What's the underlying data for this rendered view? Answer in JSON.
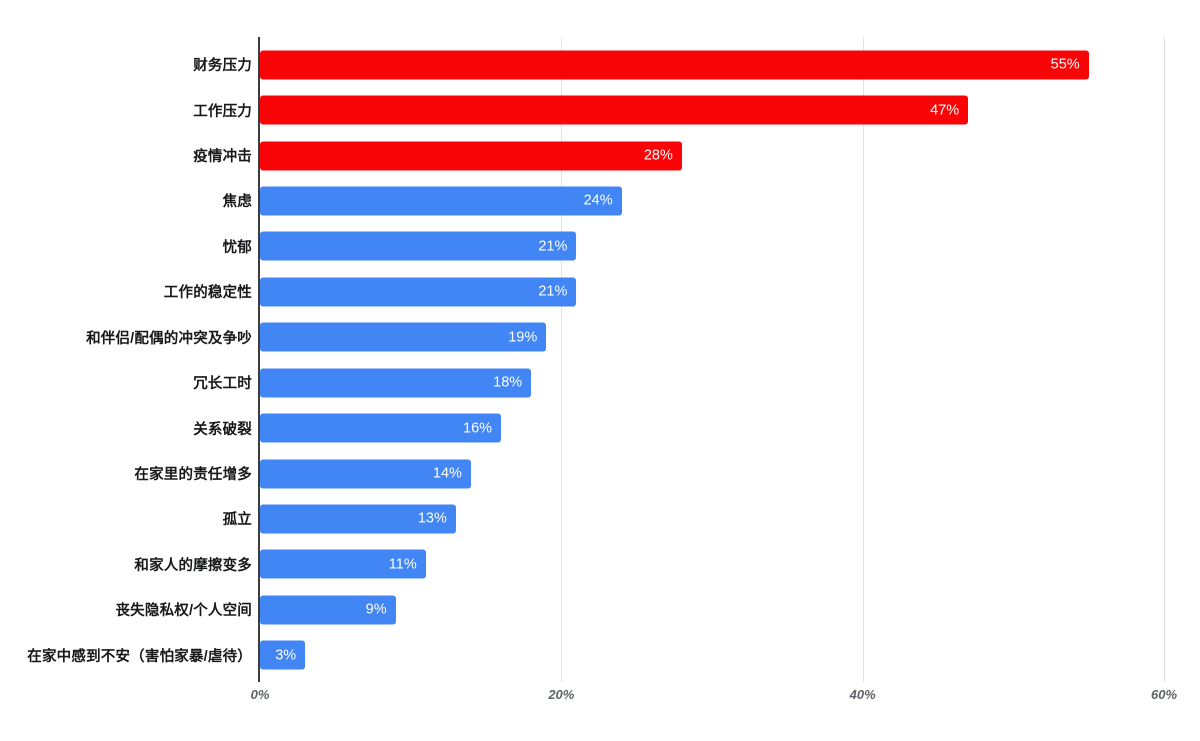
{
  "chart_data": {
    "type": "bar",
    "orientation": "horizontal",
    "title": "",
    "xlabel": "",
    "ylabel": "",
    "categories": [
      "财务压力",
      "工作压力",
      "疫情冲击",
      "焦虑",
      "忧郁",
      "工作的稳定性",
      "和伴侣/配偶的冲突及争吵",
      "冗长工时",
      "关系破裂",
      "在家里的责任增多",
      "孤立",
      "和家人的摩擦变多",
      "丧失隐私权/个人空间",
      "在家中感到不安（害怕家暴/虐待）"
    ],
    "values": [
      55,
      47,
      28,
      24,
      21,
      21,
      19,
      18,
      16,
      14,
      13,
      11,
      9,
      3
    ],
    "value_labels": [
      "55%",
      "47%",
      "28%",
      "24%",
      "21%",
      "21%",
      "19%",
      "18%",
      "16%",
      "14%",
      "13%",
      "11%",
      "9%",
      "3%"
    ],
    "colors": [
      "#fa0507",
      "#fa0507",
      "#fa0507",
      "#4285f4",
      "#4285f4",
      "#4285f4",
      "#4285f4",
      "#4285f4",
      "#4285f4",
      "#4285f4",
      "#4285f4",
      "#4285f4",
      "#4285f4",
      "#4285f4"
    ],
    "highlight_color": "#fa0507",
    "base_color": "#4285f4",
    "value_label_color": "#ffffff",
    "category_label_color": "#17181a",
    "axis_line_color": "#3c3c3c",
    "gridline_color": "#e2e2e2",
    "tick_label_color": "#5f6368",
    "x_ticks": [
      {
        "label": "0%",
        "value": 0
      },
      {
        "label": "20%",
        "value": 20
      },
      {
        "label": "40%",
        "value": 40
      },
      {
        "label": "60%",
        "value": 60
      }
    ],
    "xlim": [
      0,
      60
    ],
    "grid": true,
    "legend": "none",
    "background": "#ffffff"
  }
}
